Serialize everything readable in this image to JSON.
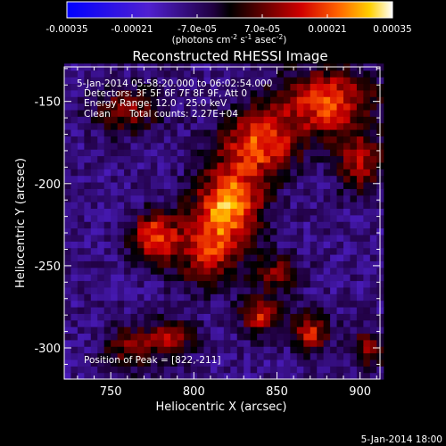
{
  "colorbar": {
    "ticks": [
      "-0.00035",
      "-0.00021",
      "-7.0e-05",
      "7.0e-05",
      "0.00021",
      "0.00035"
    ],
    "units_base": "(photons cm",
    "units_sup1": "-2",
    "units_mid": " s",
    "units_sup2": "-1",
    "units_end": " asec",
    "units_sup3": "-2",
    "units_close": ")",
    "colormap": "rhessi-red-temperature (blue negative, black zero, red-yellow-white positive)"
  },
  "annotations": {
    "time_range": "5-Jan-2014 05:58:20.000 to 06:02:54.000",
    "detectors": "Detectors: 3F 5F 6F 7F 8F 9F, Att 0",
    "energy": "Energy Range: 12.0 - 25.0 keV",
    "method": "Clean",
    "counts": "Total counts: 2.27E+04",
    "peak": "Position of Peak = [822,-211]"
  },
  "footer": {
    "timestamp": "5-Jan-2014 18:00"
  },
  "chart_data": {
    "type": "heatmap",
    "title": "Reconstructed RHESSI Image",
    "xlabel": "Heliocentric X (arcsec)",
    "ylabel": "Heliocentric Y (arcsec)",
    "xlim": [
      722,
      912
    ],
    "ylim": [
      -319,
      -129
    ],
    "x_ticks": [
      750,
      800,
      850,
      900
    ],
    "y_ticks": [
      -150,
      -200,
      -250,
      -300
    ],
    "color_range": [
      -0.00035,
      0.00035
    ],
    "peak": [
      822,
      -211
    ],
    "pixel_size_arcsec": 4,
    "grid": false,
    "blobs": [
      {
        "x": 822,
        "y": -211,
        "value": 0.00034,
        "sx": 14,
        "sy": 16
      },
      {
        "x": 840,
        "y": -175,
        "value": 0.0003,
        "sx": 16,
        "sy": 14
      },
      {
        "x": 880,
        "y": -150,
        "value": 0.0003,
        "sx": 20,
        "sy": 14
      },
      {
        "x": 808,
        "y": -240,
        "value": 0.00024,
        "sx": 14,
        "sy": 16
      },
      {
        "x": 776,
        "y": -232,
        "value": 0.0003,
        "sx": 10,
        "sy": 10
      },
      {
        "x": 760,
        "y": -155,
        "value": 0.00018,
        "sx": 14,
        "sy": 10
      },
      {
        "x": 900,
        "y": -187,
        "value": 0.00022,
        "sx": 10,
        "sy": 12
      },
      {
        "x": 850,
        "y": -255,
        "value": 0.00018,
        "sx": 10,
        "sy": 8
      },
      {
        "x": 840,
        "y": -280,
        "value": 0.00025,
        "sx": 8,
        "sy": 8
      },
      {
        "x": 870,
        "y": -290,
        "value": 0.00025,
        "sx": 8,
        "sy": 8
      },
      {
        "x": 785,
        "y": -295,
        "value": 0.00022,
        "sx": 10,
        "sy": 8
      },
      {
        "x": 905,
        "y": -300,
        "value": 0.00018,
        "sx": 8,
        "sy": 8
      },
      {
        "x": 760,
        "y": -300,
        "value": 0.00016,
        "sx": 10,
        "sy": 10
      }
    ],
    "background_value": -9e-05
  }
}
